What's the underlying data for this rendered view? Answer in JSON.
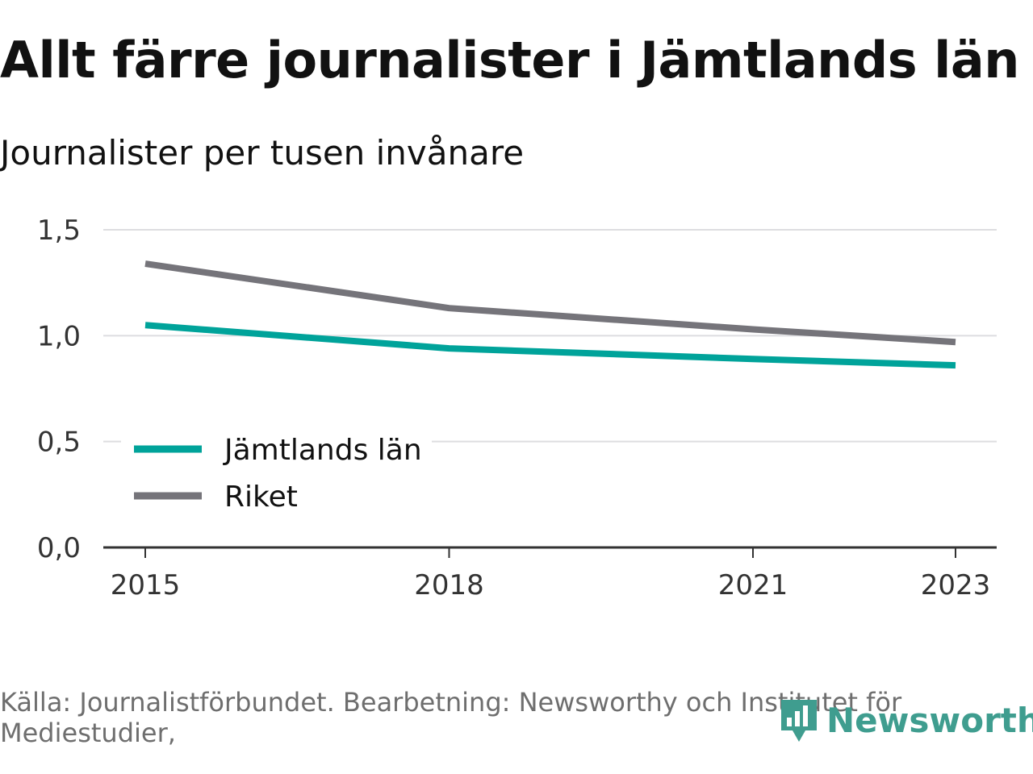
{
  "colors": {
    "accent": "#00a39a",
    "secondary": "#75747a",
    "grid": "#dddde0",
    "axis": "#333333"
  },
  "source": "Källa: Journalistförbundet. Bearbetning: Newsworthy och Institutet för Mediestudier,",
  "logo": {
    "text": "Newsworthy",
    "icon": "newsworthy-logo-icon"
  },
  "chart_data": {
    "type": "line",
    "title": "Allt färre journalister i Jämtlands län",
    "subtitle": "Journalister per tusen invånare",
    "xlabel": "",
    "ylabel": "",
    "x": [
      2015,
      2018,
      2021,
      2023
    ],
    "x_ticks": [
      "2015",
      "2018",
      "2021",
      "2023"
    ],
    "y_ticks": [
      "1,5",
      "1,0",
      "0,5",
      "0,0"
    ],
    "y_tick_values": [
      1.5,
      1.0,
      0.5,
      0.0
    ],
    "ylim": [
      0,
      1.5
    ],
    "xlim": [
      2015,
      2023
    ],
    "grid": true,
    "legend_position": "bottom-left",
    "series": [
      {
        "name": "Jämtlands län",
        "color": "#00a39a",
        "values": [
          1.05,
          0.94,
          0.89,
          0.86
        ]
      },
      {
        "name": "Riket",
        "color": "#75747a",
        "values": [
          1.34,
          1.13,
          1.03,
          0.97
        ]
      }
    ]
  }
}
